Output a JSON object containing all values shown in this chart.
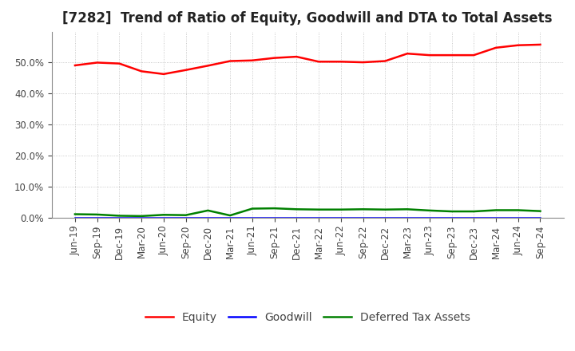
{
  "title": "[7282]  Trend of Ratio of Equity, Goodwill and DTA to Total Assets",
  "x_labels": [
    "Jun-19",
    "Sep-19",
    "Dec-19",
    "Mar-20",
    "Jun-20",
    "Sep-20",
    "Dec-20",
    "Mar-21",
    "Jun-21",
    "Sep-21",
    "Dec-21",
    "Mar-22",
    "Jun-22",
    "Sep-22",
    "Dec-22",
    "Mar-23",
    "Jun-23",
    "Sep-23",
    "Dec-23",
    "Mar-24",
    "Jun-24",
    "Sep-24"
  ],
  "equity": [
    0.491,
    0.5,
    0.497,
    0.472,
    0.463,
    0.476,
    0.49,
    0.505,
    0.507,
    0.515,
    0.519,
    0.503,
    0.503,
    0.501,
    0.505,
    0.529,
    0.524,
    0.524,
    0.524,
    0.548,
    0.556,
    0.558
  ],
  "goodwill": [
    0.0,
    0.0,
    0.0,
    0.0,
    0.0,
    0.0,
    0.0,
    0.0,
    0.0,
    0.0,
    0.0,
    0.0,
    0.0,
    0.0,
    0.0,
    0.0,
    0.0,
    0.0,
    0.0,
    0.0,
    0.0,
    0.0
  ],
  "dta": [
    0.011,
    0.01,
    0.006,
    0.005,
    0.009,
    0.008,
    0.023,
    0.007,
    0.029,
    0.03,
    0.027,
    0.026,
    0.026,
    0.027,
    0.026,
    0.027,
    0.023,
    0.02,
    0.02,
    0.024,
    0.024,
    0.021
  ],
  "equity_color": "#ff0000",
  "goodwill_color": "#0000ff",
  "dta_color": "#008000",
  "ylim_min": 0.0,
  "ylim_max": 0.6,
  "yticks": [
    0.0,
    0.1,
    0.2,
    0.3,
    0.4,
    0.5
  ],
  "bg_color": "#ffffff",
  "plot_bg_color": "#ffffff",
  "grid_color": "#bbbbbb",
  "title_fontsize": 12,
  "tick_fontsize": 8.5,
  "legend_fontsize": 10
}
